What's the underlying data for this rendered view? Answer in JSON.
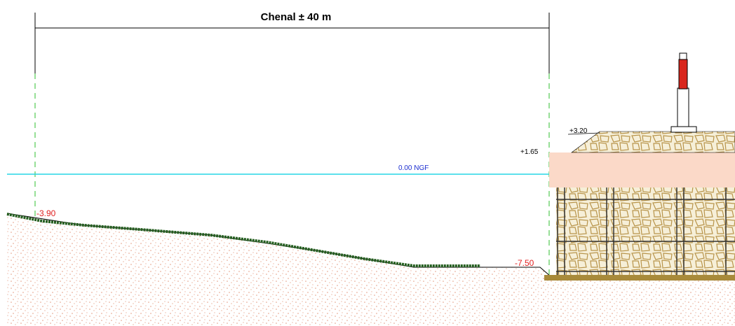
{
  "dimension": {
    "label": "Chenal ± 40 m"
  },
  "water_level": {
    "label": "0.00 NGF"
  },
  "levels": {
    "crest": "+3.20",
    "cap": "+1.65",
    "seabed_left": "-3.90",
    "seabed_right": "-7.50"
  }
}
